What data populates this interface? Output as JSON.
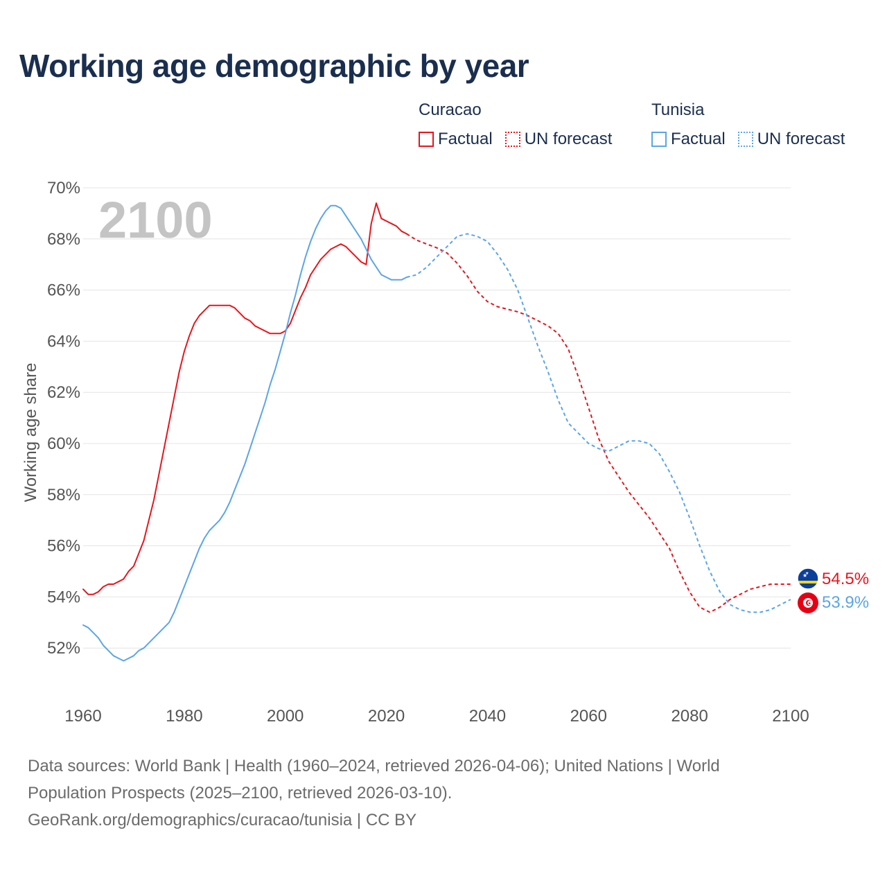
{
  "title": "Working age demographic by year",
  "legend": {
    "groups": [
      {
        "country": "Curacao",
        "color": "#e8141c",
        "factual_label": "Factual",
        "forecast_label": "UN forecast"
      },
      {
        "country": "Tunisia",
        "color": "#5aa5e6",
        "factual_label": "Factual",
        "forecast_label": "UN forecast"
      }
    ]
  },
  "footer": {
    "line1": "Data sources: World Bank | Health (1960–2024, retrieved 2026-04-06); United Nations | World",
    "line2": "Population Prospects (2025–2100, retrieved 2026-03-10).",
    "line3": "GeoRank.org/demographics/curacao/tunisia | CC BY"
  },
  "chart_data": {
    "type": "line",
    "title": "Working age demographic by year",
    "ylabel": "Working age share",
    "xlabel": "",
    "xlim": [
      1960,
      2100
    ],
    "ylim": [
      50,
      70
    ],
    "xticks": [
      1960,
      1980,
      2000,
      2020,
      2040,
      2060,
      2080,
      2100
    ],
    "xtick_labels": [
      "1960",
      "1980",
      "2000",
      "2020",
      "2040",
      "2060",
      "2080",
      "2100"
    ],
    "yticks": [
      52,
      54,
      56,
      58,
      60,
      62,
      64,
      66,
      68,
      70
    ],
    "ytick_labels": [
      "52%",
      "54%",
      "56%",
      "58%",
      "60%",
      "62%",
      "64%",
      "66%",
      "68%",
      "70%"
    ],
    "grid": true,
    "year_watermark": "2100",
    "series": [
      {
        "name": "Curacao",
        "color": "#e8141c",
        "factual": {
          "x": [
            1960,
            1961,
            1962,
            1963,
            1964,
            1965,
            1966,
            1967,
            1968,
            1969,
            1970,
            1971,
            1972,
            1973,
            1974,
            1975,
            1976,
            1977,
            1978,
            1979,
            1980,
            1981,
            1982,
            1983,
            1984,
            1985,
            1986,
            1987,
            1988,
            1989,
            1990,
            1991,
            1992,
            1993,
            1994,
            1995,
            1996,
            1997,
            1998,
            1999,
            2000,
            2001,
            2002,
            2003,
            2004,
            2005,
            2006,
            2007,
            2008,
            2009,
            2010,
            2011,
            2012,
            2013,
            2014,
            2015,
            2016,
            2017,
            2018,
            2019,
            2020,
            2021,
            2022,
            2023,
            2024
          ],
          "y": [
            54.3,
            54.1,
            54.1,
            54.2,
            54.4,
            54.5,
            54.5,
            54.6,
            54.7,
            55.0,
            55.2,
            55.7,
            56.2,
            57.0,
            57.8,
            58.8,
            59.8,
            60.8,
            61.8,
            62.8,
            63.6,
            64.2,
            64.7,
            65.0,
            65.2,
            65.4,
            65.4,
            65.4,
            65.4,
            65.4,
            65.3,
            65.1,
            64.9,
            64.8,
            64.6,
            64.5,
            64.4,
            64.3,
            64.3,
            64.3,
            64.4,
            64.7,
            65.2,
            65.7,
            66.1,
            66.6,
            66.9,
            67.2,
            67.4,
            67.6,
            67.7,
            67.8,
            67.7,
            67.5,
            67.3,
            67.1,
            67.0,
            68.6,
            69.4,
            68.8,
            68.7,
            68.6,
            68.5,
            68.3,
            68.2
          ]
        },
        "forecast": {
          "x": [
            2024,
            2026,
            2028,
            2030,
            2032,
            2034,
            2036,
            2038,
            2040,
            2042,
            2044,
            2046,
            2048,
            2050,
            2052,
            2054,
            2056,
            2058,
            2060,
            2062,
            2064,
            2066,
            2068,
            2070,
            2072,
            2074,
            2076,
            2078,
            2080,
            2082,
            2084,
            2086,
            2088,
            2090,
            2092,
            2094,
            2096,
            2098,
            2100
          ],
          "y": [
            68.2,
            67.95,
            67.8,
            67.65,
            67.45,
            67.05,
            66.55,
            65.95,
            65.55,
            65.35,
            65.25,
            65.15,
            65.0,
            64.8,
            64.6,
            64.3,
            63.7,
            62.6,
            61.4,
            60.2,
            59.3,
            58.7,
            58.1,
            57.6,
            57.1,
            56.5,
            55.9,
            55.0,
            54.2,
            53.6,
            53.4,
            53.6,
            53.9,
            54.1,
            54.3,
            54.4,
            54.5,
            54.5,
            54.5
          ]
        },
        "end_value": 54.5,
        "end_label": "54.5%"
      },
      {
        "name": "Tunisia",
        "color": "#5aa5e6",
        "factual": {
          "x": [
            1960,
            1961,
            1962,
            1963,
            1964,
            1965,
            1966,
            1967,
            1968,
            1969,
            1970,
            1971,
            1972,
            1973,
            1974,
            1975,
            1976,
            1977,
            1978,
            1979,
            1980,
            1981,
            1982,
            1983,
            1984,
            1985,
            1986,
            1987,
            1988,
            1989,
            1990,
            1991,
            1992,
            1993,
            1994,
            1995,
            1996,
            1997,
            1998,
            1999,
            2000,
            2001,
            2002,
            2003,
            2004,
            2005,
            2006,
            2007,
            2008,
            2009,
            2010,
            2011,
            2012,
            2013,
            2014,
            2015,
            2016,
            2017,
            2018,
            2019,
            2020,
            2021,
            2022,
            2023,
            2024
          ],
          "y": [
            52.9,
            52.8,
            52.6,
            52.4,
            52.1,
            51.9,
            51.7,
            51.6,
            51.5,
            51.6,
            51.7,
            51.9,
            52.0,
            52.2,
            52.4,
            52.6,
            52.8,
            53.0,
            53.4,
            53.9,
            54.4,
            54.9,
            55.4,
            55.9,
            56.3,
            56.6,
            56.8,
            57.0,
            57.3,
            57.7,
            58.2,
            58.7,
            59.2,
            59.8,
            60.4,
            61.0,
            61.6,
            62.3,
            62.9,
            63.6,
            64.3,
            65.1,
            65.8,
            66.6,
            67.3,
            67.9,
            68.4,
            68.8,
            69.1,
            69.3,
            69.3,
            69.2,
            68.9,
            68.6,
            68.3,
            68.0,
            67.6,
            67.2,
            66.9,
            66.6,
            66.5,
            66.4,
            66.4,
            66.4,
            66.5
          ]
        },
        "forecast": {
          "x": [
            2024,
            2026,
            2028,
            2030,
            2032,
            2034,
            2036,
            2038,
            2040,
            2042,
            2044,
            2046,
            2048,
            2050,
            2052,
            2054,
            2056,
            2058,
            2060,
            2062,
            2064,
            2066,
            2068,
            2070,
            2072,
            2074,
            2076,
            2078,
            2080,
            2082,
            2084,
            2086,
            2088,
            2090,
            2092,
            2094,
            2096,
            2098,
            2100
          ],
          "y": [
            66.5,
            66.6,
            66.9,
            67.3,
            67.7,
            68.1,
            68.2,
            68.1,
            67.9,
            67.4,
            66.8,
            66.0,
            64.9,
            63.8,
            62.8,
            61.7,
            60.8,
            60.4,
            60.0,
            59.8,
            59.7,
            59.9,
            60.1,
            60.1,
            60.0,
            59.6,
            58.9,
            58.1,
            57.1,
            56.0,
            55.0,
            54.2,
            53.7,
            53.5,
            53.4,
            53.4,
            53.5,
            53.7,
            53.9
          ]
        },
        "end_value": 53.9,
        "end_label": "53.9%"
      }
    ]
  }
}
